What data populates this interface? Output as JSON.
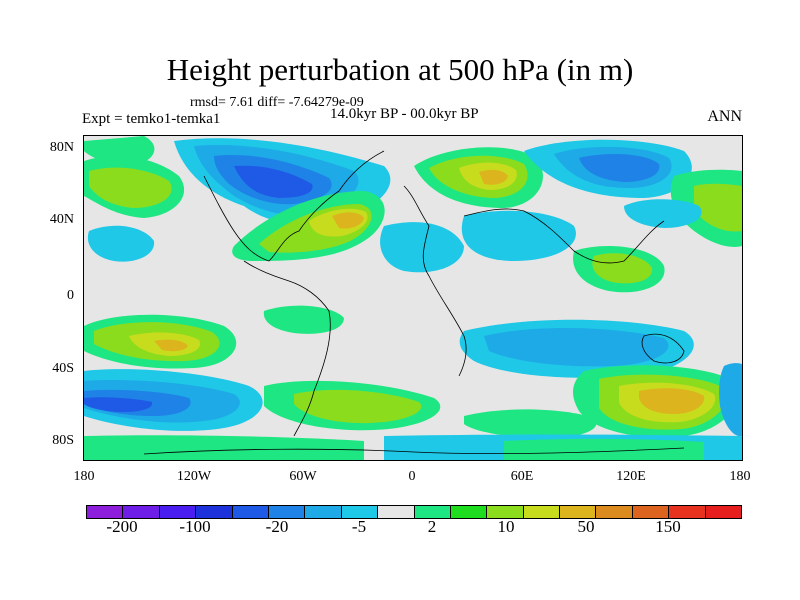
{
  "header": {
    "title": "Height perturbation at 500 hPa (in m)",
    "stats": "rmsd= 7.61 diff= -7.64279e-09",
    "subtitle": "14.0kyr BP - 00.0kyr BP",
    "experiment": "Expt = temko1-temka1",
    "season": "ANN"
  },
  "map_axes": {
    "lat_labels": [
      "80N",
      "40N",
      "0",
      "40S",
      "80S"
    ],
    "lon_labels": [
      "180",
      "120W",
      "60W",
      "0",
      "60E",
      "120E",
      "180"
    ]
  },
  "colorbar": {
    "colors": [
      "#8c1edc",
      "#6e1ee6",
      "#4a1ef0",
      "#1e32dc",
      "#1e5ae6",
      "#1e82e6",
      "#1eaae6",
      "#1ec8e6",
      "#e6e6e6",
      "#1ee682",
      "#1edc1e",
      "#8cdc1e",
      "#c8dc1e",
      "#dcb41e",
      "#dc8c1e",
      "#dc641e",
      "#e6321e",
      "#e61e1e"
    ],
    "labels": [
      "-200",
      "-100",
      "-20",
      "-5",
      "2",
      "10",
      "50",
      "150"
    ]
  }
}
